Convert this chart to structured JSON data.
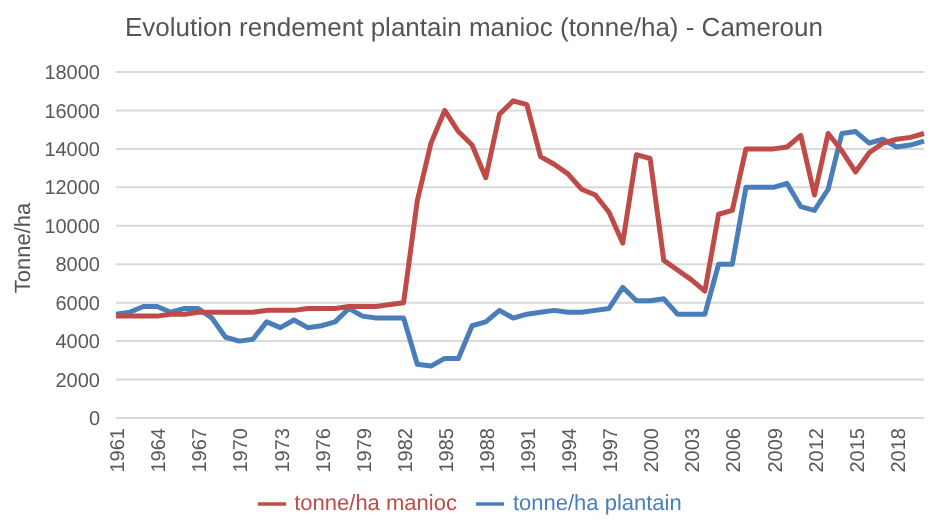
{
  "chart_data": {
    "type": "line",
    "title": "Evolution rendement plantain manioc (tonne/ha) - Cameroun",
    "ylabel": "Tonne/ha",
    "categories": [
      "1961",
      null,
      null,
      "1964",
      null,
      null,
      "1967",
      null,
      null,
      "1970",
      null,
      null,
      "1973",
      null,
      null,
      "1976",
      null,
      null,
      "1979",
      null,
      null,
      "1982",
      null,
      null,
      "1985",
      null,
      null,
      "1988",
      null,
      null,
      "1991",
      null,
      null,
      "1994",
      null,
      null,
      "1997",
      null,
      null,
      "2000",
      null,
      null,
      "2003",
      null,
      null,
      "2006",
      null,
      null,
      "2009",
      null,
      null,
      "2012",
      null,
      null,
      "2015",
      null,
      null,
      "2018",
      null,
      null
    ],
    "series": [
      {
        "name": "tonne/ha plantain",
        "color": "#4a7ebb",
        "values": [
          5400,
          5500,
          5800,
          5800,
          5500,
          5700,
          5700,
          5200,
          4200,
          4000,
          4100,
          5000,
          4700,
          5100,
          4700,
          4800,
          5000,
          5700,
          5300,
          5200,
          5200,
          5200,
          2800,
          2700,
          3100,
          3100,
          4800,
          5000,
          5600,
          5200,
          5400,
          5500,
          5600,
          5500,
          5500,
          5600,
          5700,
          6800,
          6100,
          6100,
          6200,
          5400,
          5400,
          5400,
          8000,
          8000,
          12000,
          12000,
          12000,
          12200,
          11000,
          10800,
          11900,
          14800,
          14900,
          14300,
          14500,
          14100,
          14200,
          14400
        ]
      },
      {
        "name": "tonne/ha manioc",
        "color": "#be4b48",
        "values": [
          5300,
          5300,
          5300,
          5300,
          5400,
          5400,
          5500,
          5500,
          5500,
          5500,
          5500,
          5600,
          5600,
          5600,
          5700,
          5700,
          5700,
          5800,
          5800,
          5800,
          5900,
          6000,
          11300,
          14300,
          16000,
          14900,
          14200,
          12500,
          15800,
          16500,
          16300,
          13600,
          13200,
          12700,
          11900,
          11600,
          10700,
          9100,
          13700,
          13500,
          8200,
          7700,
          7200,
          6600,
          10600,
          10800,
          14000,
          14000,
          14000,
          14100,
          14700,
          11600,
          14800,
          13900,
          12800,
          13800,
          14300,
          14500,
          14600,
          14800
        ]
      }
    ],
    "ylim": [
      0,
      18000
    ],
    "yticks": [
      0,
      2000,
      4000,
      6000,
      8000,
      10000,
      12000,
      14000,
      16000,
      18000
    ],
    "grid": "y",
    "legend": "bottom",
    "marker": "none",
    "line_style": "solid"
  }
}
